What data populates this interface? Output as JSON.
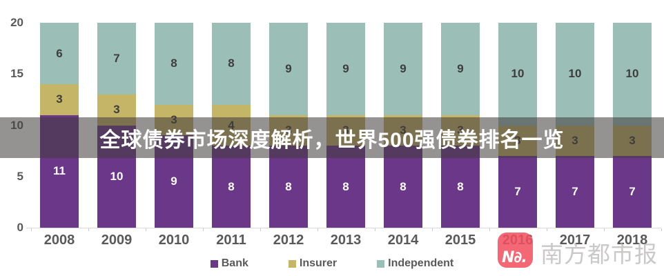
{
  "headline": {
    "title": "全球债券市场深度解析，世界500强债券排名一览"
  },
  "chart_data": {
    "type": "bar",
    "stacked": true,
    "categories": [
      "2008",
      "2009",
      "2010",
      "2011",
      "2012",
      "2013",
      "2014",
      "2015",
      "2016",
      "2017",
      "2018"
    ],
    "series": [
      {
        "name": "Bank",
        "color": "#6a3789",
        "label_color": "#ffffff",
        "values": [
          11,
          10,
          9,
          8,
          8,
          8,
          8,
          8,
          7,
          7,
          7
        ]
      },
      {
        "name": "Insurer",
        "color": "#c5b566",
        "label_color": "#3d3d3d",
        "values": [
          3,
          3,
          3,
          4,
          3,
          3,
          3,
          3,
          3,
          3,
          3
        ]
      },
      {
        "name": "Independent",
        "color": "#9bbeb7",
        "label_color": "#3d3d3d",
        "values": [
          6,
          7,
          8,
          8,
          9,
          9,
          9,
          9,
          10,
          10,
          10
        ]
      }
    ],
    "ylim": [
      0,
      20
    ],
    "yticks": [
      20,
      15,
      10,
      5,
      0
    ],
    "legend_position": "bottom",
    "grid": false,
    "title": ""
  },
  "watermark": {
    "logo_text": "N∂.",
    "logo_color": "#f2505e",
    "brand_text": "南方都市报"
  }
}
